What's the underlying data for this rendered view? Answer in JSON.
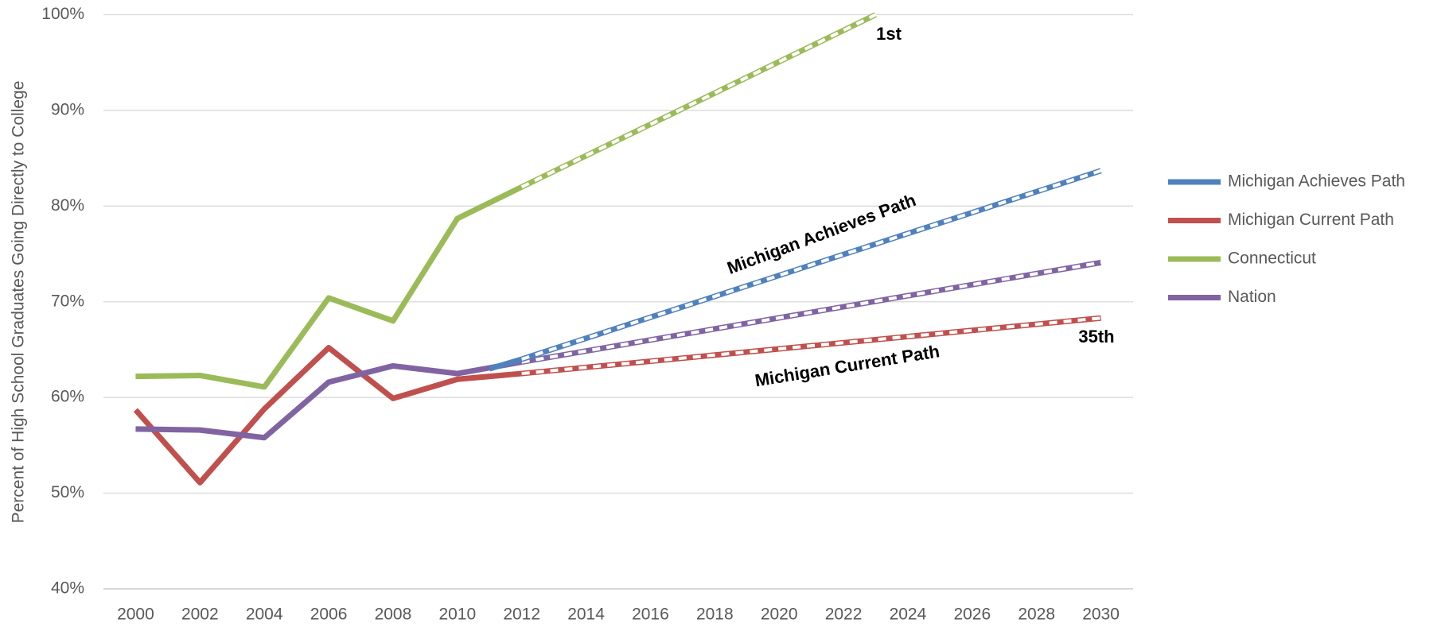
{
  "chart_data": {
    "type": "line",
    "y_axis_label": "Percent of High School Graduates Going Directly to College",
    "xlim": [
      1999,
      2031
    ],
    "xticks": [
      2000,
      2002,
      2004,
      2006,
      2008,
      2010,
      2012,
      2014,
      2016,
      2018,
      2020,
      2022,
      2024,
      2026,
      2028,
      2030
    ],
    "ylim": [
      40,
      100
    ],
    "yticks": [
      {
        "value": 40,
        "label": "40%"
      },
      {
        "value": 50,
        "label": "50%"
      },
      {
        "value": 60,
        "label": "60%"
      },
      {
        "value": 70,
        "label": "70%"
      },
      {
        "value": 80,
        "label": "80%"
      },
      {
        "value": 90,
        "label": "90%"
      },
      {
        "value": 100,
        "label": "100%"
      }
    ],
    "grid": true,
    "legend": "right",
    "dashed_after": 2012,
    "series": [
      {
        "name": "Michigan Achieves Path",
        "color": "#4f81bd",
        "x": [
          2011,
          2012,
          2030
        ],
        "values": [
          63.0,
          64.0,
          83.7
        ]
      },
      {
        "name": "Michigan Current Path",
        "color": "#c0504d",
        "x": [
          2000,
          2002,
          2004,
          2006,
          2008,
          2010,
          2012,
          2030
        ],
        "values": [
          58.7,
          51.1,
          58.8,
          65.2,
          59.9,
          61.9,
          62.5,
          68.3
        ]
      },
      {
        "name": "Connecticut",
        "color": "#9bbb59",
        "x": [
          2000,
          2002,
          2004,
          2006,
          2008,
          2010,
          2012,
          2023
        ],
        "values": [
          62.2,
          62.3,
          61.1,
          70.4,
          68.0,
          78.7,
          82.0,
          100
        ]
      },
      {
        "name": "Nation",
        "color": "#8064a2",
        "x": [
          2000,
          2002,
          2004,
          2006,
          2008,
          2010,
          2012,
          2030
        ],
        "values": [
          56.7,
          56.6,
          55.8,
          61.6,
          63.3,
          62.5,
          63.7,
          74.1
        ]
      }
    ],
    "annotations": [
      "1st",
      "Michigan Achieves Path",
      "Michigan Current Path",
      "35th"
    ]
  }
}
